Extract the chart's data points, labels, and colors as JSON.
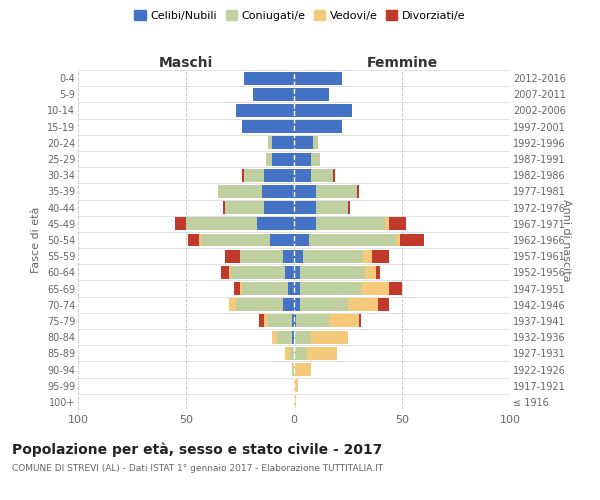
{
  "age_groups": [
    "100+",
    "95-99",
    "90-94",
    "85-89",
    "80-84",
    "75-79",
    "70-74",
    "65-69",
    "60-64",
    "55-59",
    "50-54",
    "45-49",
    "40-44",
    "35-39",
    "30-34",
    "25-29",
    "20-24",
    "15-19",
    "10-14",
    "5-9",
    "0-4"
  ],
  "birth_years": [
    "≤ 1916",
    "1917-1921",
    "1922-1926",
    "1927-1931",
    "1932-1936",
    "1937-1941",
    "1942-1946",
    "1947-1951",
    "1952-1956",
    "1957-1961",
    "1962-1966",
    "1967-1971",
    "1972-1976",
    "1977-1981",
    "1982-1986",
    "1987-1991",
    "1992-1996",
    "1997-2001",
    "2002-2006",
    "2007-2011",
    "2012-2016"
  ],
  "maschi": {
    "celibi": [
      0,
      0,
      0,
      0,
      1,
      1,
      5,
      3,
      4,
      5,
      11,
      17,
      14,
      15,
      14,
      10,
      10,
      24,
      27,
      19,
      23
    ],
    "coniugati": [
      0,
      0,
      1,
      2,
      7,
      11,
      22,
      21,
      25,
      20,
      32,
      33,
      18,
      20,
      9,
      3,
      2,
      0,
      0,
      0,
      0
    ],
    "vedovi": [
      0,
      0,
      0,
      2,
      2,
      2,
      3,
      1,
      1,
      0,
      1,
      0,
      0,
      0,
      0,
      0,
      0,
      0,
      0,
      0,
      0
    ],
    "divorziati": [
      0,
      0,
      0,
      0,
      0,
      2,
      0,
      3,
      4,
      7,
      5,
      5,
      1,
      0,
      1,
      0,
      0,
      0,
      0,
      0,
      0
    ]
  },
  "femmine": {
    "nubili": [
      0,
      0,
      0,
      0,
      0,
      1,
      3,
      3,
      3,
      4,
      7,
      10,
      10,
      10,
      8,
      8,
      9,
      22,
      27,
      16,
      22
    ],
    "coniugate": [
      0,
      0,
      0,
      6,
      8,
      15,
      22,
      28,
      30,
      28,
      40,
      32,
      15,
      19,
      10,
      4,
      2,
      0,
      0,
      0,
      0
    ],
    "vedove": [
      1,
      2,
      8,
      14,
      17,
      14,
      14,
      13,
      5,
      4,
      2,
      2,
      0,
      0,
      0,
      0,
      0,
      0,
      0,
      0,
      0
    ],
    "divorziate": [
      0,
      0,
      0,
      0,
      0,
      1,
      5,
      6,
      2,
      8,
      11,
      8,
      1,
      1,
      1,
      0,
      0,
      0,
      0,
      0,
      0
    ]
  },
  "colors": {
    "celibi": "#4472C4",
    "coniugati": "#BFCF9F",
    "vedovi": "#F5C97A",
    "divorziati": "#C0392B"
  },
  "title": "Popolazione per età, sesso e stato civile - 2017",
  "subtitle": "COMUNE DI STREVI (AL) - Dati ISTAT 1° gennaio 2017 - Elaborazione TUTTITALIA.IT",
  "ylabel_left": "Fasce di età",
  "ylabel_right": "Anni di nascita",
  "xlabel_left": "Maschi",
  "xlabel_right": "Femmine",
  "legend_labels": [
    "Celibi/Nubili",
    "Coniugati/e",
    "Vedovi/e",
    "Divorziati/e"
  ],
  "xlim": 100,
  "background_color": "#ffffff",
  "grid_color": "#cccccc"
}
